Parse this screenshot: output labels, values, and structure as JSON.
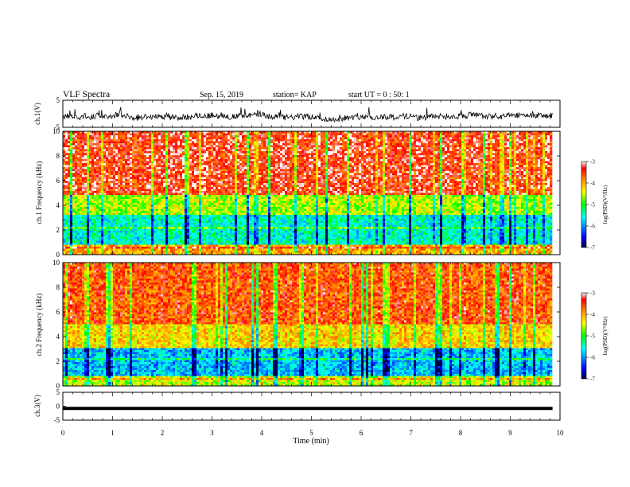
{
  "header": {
    "title": "VLF Spectra",
    "date": "Sep. 15, 2019",
    "station": "station= KAP",
    "start": "start UT =  0 : 50: 1"
  },
  "colorbar": {
    "label": "log(PSD)(V²/Hz)",
    "ticks": [
      "-3",
      "-4",
      "-5",
      "-6",
      "-7"
    ],
    "range": [
      -7,
      -3
    ],
    "colors": [
      "#000040",
      "#0000ff",
      "#00ffff",
      "#00ff00",
      "#ffff00",
      "#ff8000",
      "#ff0000",
      "#ffffff"
    ]
  },
  "chart_data": [
    {
      "type": "line",
      "name": "ch1-voltage",
      "ylabel": "ch.1(V)",
      "ylim": [
        -5,
        5
      ],
      "yticks": [
        "5",
        "-5"
      ],
      "xlim": [
        0,
        10
      ],
      "description_signal": "noisy trace around -1 V with excursions to about +3 V"
    },
    {
      "type": "heatmap",
      "name": "ch1-spectrogram",
      "ylabel": "ch.1 Frequency (kHz)",
      "ylim": [
        0,
        10
      ],
      "yticks": [
        "0",
        "2",
        "4",
        "6",
        "8",
        "10"
      ],
      "xlim": [
        0,
        9.85
      ],
      "zlim": [
        -7,
        -3
      ],
      "bands": [
        {
          "f": [
            0,
            0.8
          ],
          "level": -4.0
        },
        {
          "f": [
            0.8,
            3.2
          ],
          "level": -5.5
        },
        {
          "f": [
            3.2,
            4.8
          ],
          "level": -4.6
        },
        {
          "f": [
            4.8,
            10
          ],
          "level": -3.4
        }
      ]
    },
    {
      "type": "heatmap",
      "name": "ch2-spectrogram",
      "ylabel": "ch.2 Frequency (kHz)",
      "ylim": [
        0,
        10
      ],
      "yticks": [
        "0",
        "2",
        "4",
        "6",
        "8",
        "10"
      ],
      "xlim": [
        0,
        9.85
      ],
      "zlim": [
        -7,
        -3
      ],
      "bands": [
        {
          "f": [
            0,
            0.8
          ],
          "level": -4.5
        },
        {
          "f": [
            0.8,
            3.0
          ],
          "level": -5.8
        },
        {
          "f": [
            3.0,
            5.0
          ],
          "level": -4.2
        },
        {
          "f": [
            5.0,
            10
          ],
          "level": -3.6
        }
      ]
    },
    {
      "type": "line",
      "name": "ch3-voltage",
      "ylabel": "ch.3(V)",
      "ylim": [
        -5,
        5
      ],
      "yticks": [
        "5",
        "0",
        "-5"
      ],
      "xlim": [
        0,
        10
      ],
      "constant_value": -0.8
    }
  ],
  "xaxis": {
    "label": "Time (min)",
    "ticks": [
      "0",
      "1",
      "2",
      "3",
      "4",
      "5",
      "6",
      "7",
      "8",
      "9",
      "10"
    ],
    "range": [
      0,
      10
    ]
  }
}
